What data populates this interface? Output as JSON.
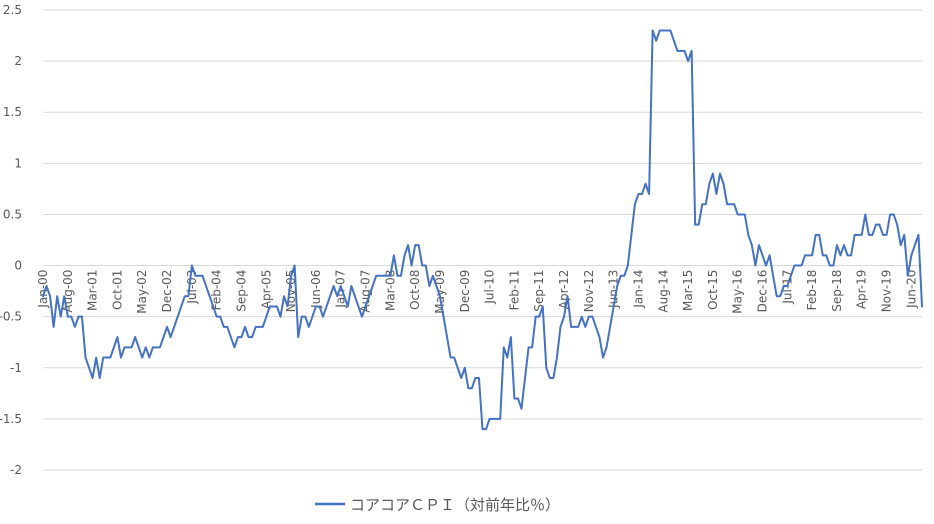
{
  "chart_data": {
    "type": "line",
    "title": "",
    "xlabel": "",
    "ylabel": "",
    "ylim": [
      -2,
      2.5
    ],
    "yticks": [
      -2,
      -1.5,
      -1,
      -0.5,
      0,
      0.5,
      1,
      1.5,
      2,
      2.5
    ],
    "ytick_labels": [
      "-2",
      "-1.5",
      "-1",
      "-0.5",
      "0",
      "0.5",
      "1",
      "1.5",
      "2",
      "2.5"
    ],
    "grid": "horizontal",
    "legend": "bottom",
    "x_start": "Jan-00",
    "x_end": "Jul-20",
    "x_tick_labels": [
      "Jan-00",
      "Aug-00",
      "Mar-01",
      "Oct-01",
      "May-02",
      "Dec-02",
      "Jul-03",
      "Feb-04",
      "Sep-04",
      "Apr-05",
      "Nov-05",
      "Jun-06",
      "Jan-07",
      "Aug-07",
      "Mar-08",
      "Oct-08",
      "May-09",
      "Dec-09",
      "Jul-10",
      "Feb-11",
      "Sep-11",
      "Apr-12",
      "Nov-12",
      "Jun-13",
      "Jan-14",
      "Aug-14",
      "Mar-15",
      "Oct-15",
      "May-16",
      "Dec-16",
      "Jul-17",
      "Feb-18",
      "Sep-18",
      "Apr-19",
      "Nov-19",
      "Jun-20"
    ],
    "series": [
      {
        "name": "コアコアＣＰＩ（対前年比％）",
        "color": "#4472c4",
        "values": [
          -0.3,
          -0.2,
          -0.3,
          -0.6,
          -0.3,
          -0.5,
          -0.3,
          -0.5,
          -0.5,
          -0.6,
          -0.5,
          -0.5,
          -0.9,
          -1.0,
          -1.1,
          -0.9,
          -1.1,
          -0.9,
          -0.9,
          -0.9,
          -0.8,
          -0.7,
          -0.9,
          -0.8,
          -0.8,
          -0.8,
          -0.7,
          -0.8,
          -0.9,
          -0.8,
          -0.9,
          -0.8,
          -0.8,
          -0.8,
          -0.7,
          -0.6,
          -0.7,
          -0.6,
          -0.5,
          -0.4,
          -0.3,
          -0.3,
          0.0,
          -0.1,
          -0.1,
          -0.1,
          -0.2,
          -0.3,
          -0.4,
          -0.5,
          -0.5,
          -0.6,
          -0.6,
          -0.7,
          -0.8,
          -0.7,
          -0.7,
          -0.6,
          -0.7,
          -0.7,
          -0.6,
          -0.6,
          -0.6,
          -0.5,
          -0.4,
          -0.4,
          -0.4,
          -0.5,
          -0.3,
          -0.4,
          -0.1,
          0.0,
          -0.7,
          -0.5,
          -0.5,
          -0.6,
          -0.5,
          -0.4,
          -0.4,
          -0.5,
          -0.4,
          -0.3,
          -0.2,
          -0.3,
          -0.2,
          -0.3,
          -0.4,
          -0.2,
          -0.3,
          -0.4,
          -0.5,
          -0.4,
          -0.3,
          -0.2,
          -0.1,
          -0.1,
          -0.1,
          -0.1,
          -0.1,
          0.1,
          -0.1,
          -0.1,
          0.1,
          0.2,
          0.0,
          0.2,
          0.2,
          0.0,
          0.0,
          -0.2,
          -0.1,
          -0.2,
          -0.3,
          -0.5,
          -0.7,
          -0.9,
          -0.9,
          -1.0,
          -1.1,
          -1.0,
          -1.2,
          -1.2,
          -1.1,
          -1.1,
          -1.6,
          -1.6,
          -1.5,
          -1.5,
          -1.5,
          -1.5,
          -0.8,
          -0.9,
          -0.7,
          -1.3,
          -1.3,
          -1.4,
          -1.1,
          -0.8,
          -0.8,
          -0.5,
          -0.5,
          -0.4,
          -1.0,
          -1.1,
          -1.1,
          -0.9,
          -0.6,
          -0.5,
          -0.3,
          -0.6,
          -0.6,
          -0.6,
          -0.5,
          -0.6,
          -0.5,
          -0.5,
          -0.6,
          -0.7,
          -0.9,
          -0.8,
          -0.6,
          -0.4,
          -0.2,
          -0.1,
          -0.1,
          0.0,
          0.3,
          0.6,
          0.7,
          0.7,
          0.8,
          0.7,
          2.3,
          2.2,
          2.3,
          2.3,
          2.3,
          2.3,
          2.2,
          2.1,
          2.1,
          2.1,
          2.0,
          2.1,
          0.4,
          0.4,
          0.6,
          0.6,
          0.8,
          0.9,
          0.7,
          0.9,
          0.8,
          0.6,
          0.6,
          0.6,
          0.5,
          0.5,
          0.5,
          0.3,
          0.2,
          0.0,
          0.2,
          0.1,
          0.0,
          0.1,
          -0.1,
          -0.3,
          -0.3,
          -0.2,
          -0.2,
          -0.1,
          0.0,
          0.0,
          0.0,
          0.1,
          0.1,
          0.1,
          0.3,
          0.3,
          0.1,
          0.1,
          0.0,
          0.0,
          0.2,
          0.1,
          0.2,
          0.1,
          0.1,
          0.3,
          0.3,
          0.3,
          0.5,
          0.3,
          0.3,
          0.4,
          0.4,
          0.3,
          0.3,
          0.5,
          0.5,
          0.4,
          0.2,
          0.3,
          -0.1,
          0.1,
          0.2,
          0.3,
          -0.4
        ]
      }
    ]
  }
}
